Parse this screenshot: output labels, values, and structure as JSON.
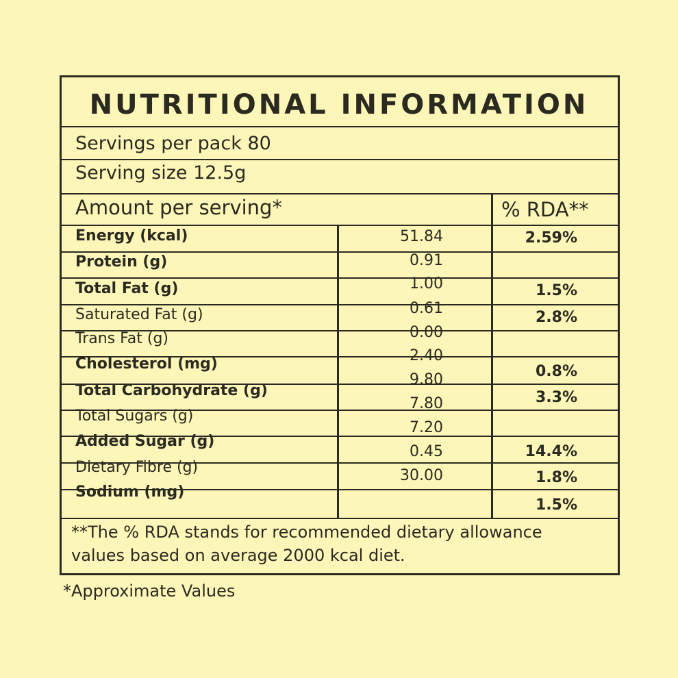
{
  "title": "NUTRITIONAL INFORMATION",
  "servings_per_pack": "Servings per pack 80",
  "serving_size": "Serving size 12.5g",
  "amount_header": "Amount per serving*",
  "rda_header": "% RDA**",
  "rows": [
    {
      "label": "Energy (kcal)",
      "bold": true
    },
    {
      "label": "Protein (g)",
      "bold": true
    },
    {
      "label": "Total Fat (g)",
      "bold": true
    },
    {
      "label": "Saturated Fat (g)",
      "bold": false
    },
    {
      "label": "Trans Fat (g)",
      "bold": false
    },
    {
      "label": "Cholesterol (mg)",
      "bold": true
    },
    {
      "label": "Total Carbohydrate (g)",
      "bold": true
    },
    {
      "label": "Total Sugars (g)",
      "bold": false
    },
    {
      "label": "Added  Sugar (g)",
      "bold": true
    },
    {
      "label": "Dietary Fibre (g)",
      "bold": false
    },
    {
      "label": "Sodium (mg)",
      "bold": true
    }
  ],
  "values": [
    "51.84",
    "0.91",
    "1.00",
    "0.61",
    "0.00",
    "2.40",
    "9.80",
    "7.80",
    "7.20",
    "0.45",
    "30.00"
  ],
  "rda_values": [
    "2.59%",
    "1.5%",
    "2.8%",
    "0.8%",
    "3.3%",
    "14.4%",
    "1.8%",
    "1.5%"
  ],
  "footnote_line1": "**The % RDA stands for recommended dietary allowance",
  "footnote_line2": "values based on average 2000 kcal diet.",
  "approx_note": "*Approximate Values",
  "colors": {
    "background": "#fdf6b9",
    "text": "#2b2a20"
  }
}
